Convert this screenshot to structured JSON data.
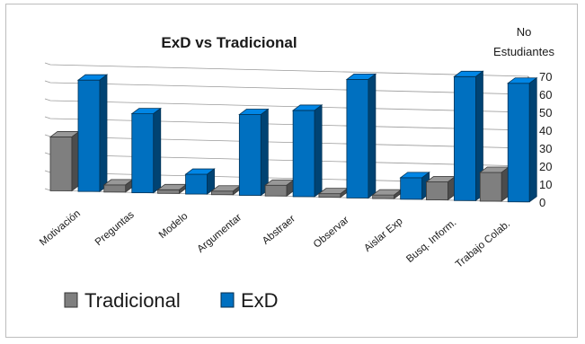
{
  "chart_data": {
    "type": "bar",
    "title": "ExD vs Tradicional",
    "ylabel_line1": "No",
    "ylabel_line2": "Estudiantes",
    "ylim": [
      0,
      70
    ],
    "yticks": [
      0,
      10,
      20,
      30,
      40,
      50,
      60,
      70
    ],
    "grid": true,
    "legend_position": "bottom-left",
    "categories": [
      "Motivación",
      "Preguntas",
      "Modelo",
      "Argumentar",
      "Abstraer",
      "Observar",
      "Aislar Exp",
      "Busq. Inform.",
      "Trabajo Colab."
    ],
    "series": [
      {
        "name": "Tradicional",
        "color": "#7f7f7f",
        "values": [
          30,
          4,
          2,
          2,
          6,
          2,
          2,
          10,
          16
        ]
      },
      {
        "name": "ExD",
        "color": "#0070c0",
        "values": [
          62,
          44,
          11,
          45,
          48,
          66,
          12,
          69,
          66
        ]
      }
    ]
  }
}
